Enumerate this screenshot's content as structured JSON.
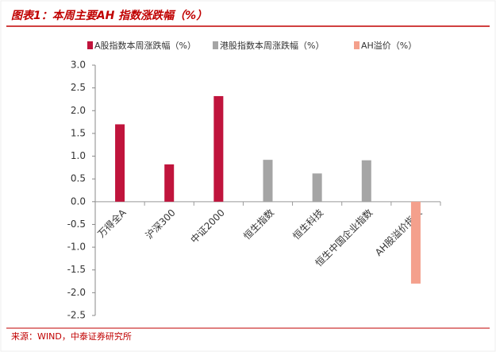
{
  "chart_data": {
    "type": "bar",
    "title": "图表1：本周主要AH 指数涨跌幅（%）",
    "source": "来源：WIND，中泰证券研究所",
    "categories": [
      "万得全A",
      "沪深300",
      "中证2000",
      "恒生指数",
      "恒生科技",
      "恒生中国企业指数",
      "AH股溢价指数"
    ],
    "series": [
      {
        "name": "A股指数本周涨跌幅（%）",
        "color": "#c0143c",
        "values": [
          1.7,
          0.82,
          2.32,
          null,
          null,
          null,
          null
        ]
      },
      {
        "name": "港股指数本周涨跌幅（%）",
        "color": "#a5a5a5",
        "values": [
          null,
          null,
          null,
          0.92,
          0.62,
          0.91,
          null
        ]
      },
      {
        "name": "AH溢价（%）",
        "color": "#f4a08c",
        "values": [
          null,
          null,
          null,
          null,
          null,
          null,
          -1.8
        ]
      }
    ],
    "ylim": [
      -2.5,
      3
    ],
    "yticks": [
      {
        "value": 3,
        "label": "3.0"
      },
      2.5,
      {
        "value": 2,
        "label": "2.0"
      },
      1.5,
      {
        "value": 1,
        "label": "1.0"
      },
      0.5,
      {
        "value": 0,
        "label": "0.0"
      },
      -0.5,
      {
        "value": -1,
        "label": "-1.0"
      },
      -1.5,
      {
        "value": -2,
        "label": "-2.0"
      },
      -2.5
    ]
  }
}
